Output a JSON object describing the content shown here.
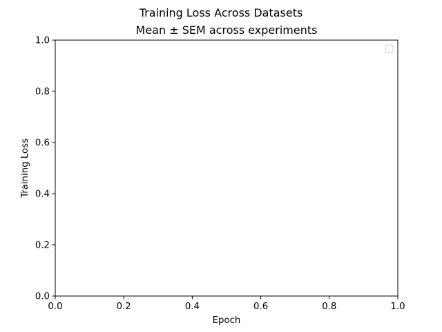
{
  "chart_data": {
    "type": "line",
    "suptitle": "Training Loss Across Datasets",
    "title": "Mean ± SEM across experiments",
    "xlabel": "Epoch",
    "ylabel": "Training Loss",
    "xlim": [
      0.0,
      1.0
    ],
    "ylim": [
      0.0,
      1.0
    ],
    "xticks": [
      "0.0",
      "0.2",
      "0.4",
      "0.6",
      "0.8",
      "1.0"
    ],
    "yticks": [
      "0.0",
      "0.2",
      "0.4",
      "0.6",
      "0.8",
      "1.0"
    ],
    "series": [],
    "grid": false,
    "legend": {
      "placement": "top-right",
      "entries": []
    }
  }
}
